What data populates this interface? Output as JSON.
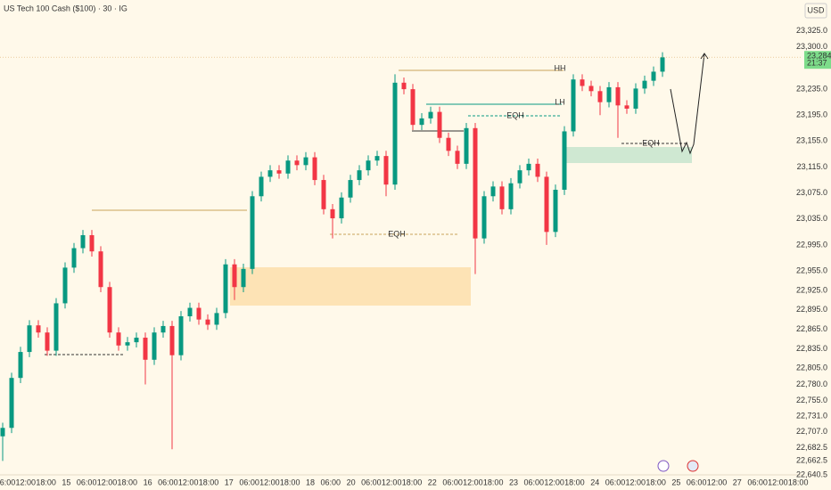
{
  "chart_data": {
    "type": "candlestick",
    "title": "US Tech 100 Cash ($100) · 30 · IG",
    "currency": "USD",
    "up_color": "#089981",
    "down_color": "#f23645",
    "grid": false,
    "ylim": [
      22620,
      23345
    ],
    "yticks": [
      {
        "value": 23325,
        "label": "23,325.0"
      },
      {
        "value": 23300,
        "label": "23,300.0"
      },
      {
        "value": 23235,
        "label": "23,235.0"
      },
      {
        "value": 23195,
        "label": "23,195.0"
      },
      {
        "value": 23155,
        "label": "23,155.0"
      },
      {
        "value": 23115,
        "label": "23,115.0"
      },
      {
        "value": 23075,
        "label": "23,075.0"
      },
      {
        "value": 23035,
        "label": "23,035.0"
      },
      {
        "value": 22995,
        "label": "22,995.0"
      },
      {
        "value": 22955,
        "label": "22,955.0"
      },
      {
        "value": 22925,
        "label": "22,925.0"
      },
      {
        "value": 22895,
        "label": "22,895.0"
      },
      {
        "value": 22865,
        "label": "22,865.0"
      },
      {
        "value": 22835,
        "label": "22,835.0"
      },
      {
        "value": 22805,
        "label": "22,805.0"
      },
      {
        "value": 22780,
        "label": "22,780.0"
      },
      {
        "value": 22755,
        "label": "22,755.0"
      },
      {
        "value": 22731,
        "label": "22,731.0"
      },
      {
        "value": 22707,
        "label": "22,707.0"
      },
      {
        "value": 22682.5,
        "label": "22,682.5"
      },
      {
        "value": 22662.5,
        "label": "22,662.5"
      },
      {
        "value": 22640.5,
        "label": "22,640.5"
      }
    ],
    "xlabels": [
      "06:00",
      "12:00",
      "18:00",
      "15",
      "06:00",
      "12:00",
      "18:00",
      "16",
      "06:00",
      "12:00",
      "18:00",
      "17",
      "06:00",
      "12:00",
      "18:00",
      "18",
      "06:00",
      "20",
      "06:00",
      "12:00",
      "18:00",
      "22",
      "06:00",
      "12:00",
      "18:00",
      "23",
      "06:00",
      "12:00",
      "18:00",
      "24",
      "06:00",
      "12:00",
      "18:00",
      "25",
      "06:00",
      "12:00",
      "27",
      "06:00",
      "12:00",
      "18:00"
    ],
    "last_price": {
      "value": 23284.3,
      "label": "23,284.3"
    },
    "countdown": "21:37",
    "annotations": [
      "EQH",
      "EQH",
      "EQH",
      "HH",
      "LH"
    ],
    "candles": [
      [
        22700,
        22721,
        22662,
        22713
      ],
      [
        22713,
        22798,
        22705,
        22790
      ],
      [
        22790,
        22838,
        22782,
        22830
      ],
      [
        22830,
        22879,
        22822,
        22871
      ],
      [
        22871,
        22879,
        22852,
        22860
      ],
      [
        22860,
        22868,
        22824,
        22832
      ],
      [
        22832,
        22913,
        22824,
        22905
      ],
      [
        22905,
        22968,
        22897,
        22960
      ],
      [
        22960,
        22998,
        22952,
        22990
      ],
      [
        22990,
        23018,
        22982,
        23010
      ],
      [
        23010,
        23018,
        22977,
        22985
      ],
      [
        22985,
        22993,
        22922,
        22930
      ],
      [
        22930,
        22938,
        22852,
        22860
      ],
      [
        22860,
        22868,
        22832,
        22840
      ],
      [
        22840,
        22853,
        22832,
        22845
      ],
      [
        22845,
        22860,
        22837,
        22852
      ],
      [
        22852,
        22860,
        22780,
        22818
      ],
      [
        22818,
        22868,
        22810,
        22860
      ],
      [
        22860,
        22878,
        22852,
        22870
      ],
      [
        22870,
        22878,
        22680,
        22825
      ],
      [
        22825,
        22893,
        22817,
        22885
      ],
      [
        22885,
        22906,
        22877,
        22898
      ],
      [
        22898,
        22906,
        22872,
        22880
      ],
      [
        22880,
        22888,
        22864,
        22872
      ],
      [
        22872,
        22898,
        22864,
        22890
      ],
      [
        22890,
        22973,
        22882,
        22965
      ],
      [
        22965,
        22973,
        22910,
        22930
      ],
      [
        22930,
        22966,
        22922,
        22958
      ],
      [
        22958,
        23078,
        22950,
        23070
      ],
      [
        23070,
        23108,
        23062,
        23100
      ],
      [
        23100,
        23118,
        23092,
        23110
      ],
      [
        23110,
        23118,
        23097,
        23105
      ],
      [
        23105,
        23133,
        23097,
        23125
      ],
      [
        23125,
        23133,
        23110,
        23118
      ],
      [
        23118,
        23138,
        23110,
        23130
      ],
      [
        23130,
        23138,
        23087,
        23095
      ],
      [
        23095,
        23103,
        23042,
        23050
      ],
      [
        23050,
        23058,
        23005,
        23036
      ],
      [
        23036,
        23076,
        23028,
        23068
      ],
      [
        23068,
        23103,
        23060,
        23095
      ],
      [
        23095,
        23118,
        23087,
        23110
      ],
      [
        23110,
        23133,
        23102,
        23125
      ],
      [
        23125,
        23140,
        23117,
        23132
      ],
      [
        23132,
        23140,
        23070,
        23088
      ],
      [
        23088,
        23258,
        23080,
        23245
      ],
      [
        23245,
        23253,
        23227,
        23235
      ],
      [
        23235,
        23243,
        23172,
        23180
      ],
      [
        23180,
        23198,
        23172,
        23190
      ],
      [
        23190,
        23208,
        23182,
        23200
      ],
      [
        23200,
        23208,
        23152,
        23160
      ],
      [
        23160,
        23168,
        23132,
        23140
      ],
      [
        23140,
        23148,
        23112,
        23120
      ],
      [
        23120,
        23183,
        23112,
        23175
      ],
      [
        23175,
        23183,
        22950,
        23005
      ],
      [
        23005,
        23078,
        22997,
        23070
      ],
      [
        23070,
        23093,
        23062,
        23085
      ],
      [
        23085,
        23093,
        23042,
        23050
      ],
      [
        23050,
        23098,
        23042,
        23090
      ],
      [
        23090,
        23118,
        23082,
        23110
      ],
      [
        23110,
        23128,
        23102,
        23120
      ],
      [
        23120,
        23128,
        23092,
        23100
      ],
      [
        23100,
        23108,
        22995,
        23015
      ],
      [
        23015,
        23088,
        23007,
        23080
      ],
      [
        23080,
        23178,
        23072,
        23170
      ],
      [
        23170,
        23258,
        23162,
        23250
      ],
      [
        23250,
        23258,
        23232,
        23240
      ],
      [
        23240,
        23248,
        23224,
        23232
      ],
      [
        23232,
        23240,
        23195,
        23215
      ],
      [
        23215,
        23246,
        23207,
        23238
      ],
      [
        23238,
        23246,
        23160,
        23210
      ],
      [
        23210,
        23218,
        23197,
        23205
      ],
      [
        23205,
        23244,
        23197,
        23236
      ],
      [
        23236,
        23256,
        23228,
        23248
      ],
      [
        23248,
        23270,
        23240,
        23262
      ],
      [
        23262,
        23292,
        23254,
        23284
      ]
    ]
  }
}
